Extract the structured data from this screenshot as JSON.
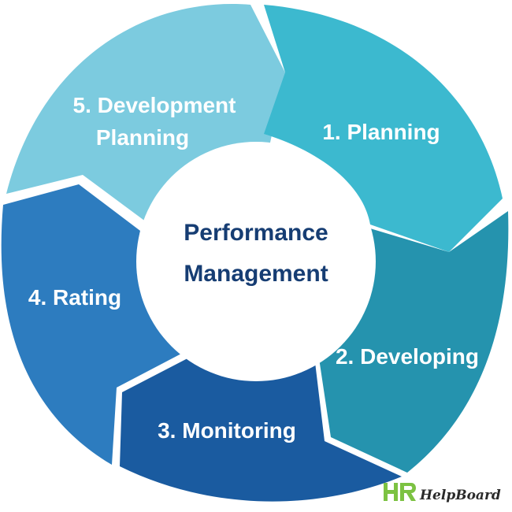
{
  "diagram": {
    "center": {
      "line1": "Performance",
      "line2": "Management",
      "text_color": "#163d73"
    },
    "segments": [
      {
        "label_line1": "1. Planning",
        "color": "#3cb9cf"
      },
      {
        "label_line1": "2. Developing",
        "color": "#2593ae"
      },
      {
        "label_line1": "3. Monitoring",
        "color": "#1a5ba0"
      },
      {
        "label_line1": "4. Rating",
        "color": "#2d7cbf"
      },
      {
        "label_line1": "5. Development",
        "label_line2": "Planning",
        "color": "#7ccbdf"
      }
    ]
  },
  "logo": {
    "mark": "HR",
    "text": "HelpBoard",
    "mark_color": "#7cc242"
  }
}
